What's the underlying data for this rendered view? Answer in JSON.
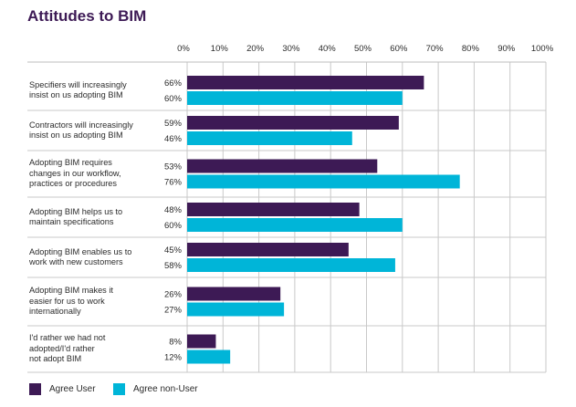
{
  "chart_data": {
    "type": "bar",
    "orientation": "horizontal",
    "title": "Attitudes to BIM",
    "xlim": [
      0,
      100
    ],
    "x_ticks": [
      "0%",
      "10%",
      "20%",
      "30%",
      "40%",
      "50%",
      "60%",
      "70%",
      "80%",
      "90%",
      "100%"
    ],
    "grid": true,
    "legend_position": "bottom-left",
    "categories": [
      [
        "Specifiers will increasingly",
        "insist on us adopting BIM"
      ],
      [
        "Contractors will increasingly",
        "insist on us adopting BIM"
      ],
      [
        "Adopting BIM requires",
        "changes in our workflow,",
        "practices or procedures"
      ],
      [
        "Adopting BIM helps us to",
        "maintain specifications"
      ],
      [
        "Adopting BIM enables us to",
        "work with new customers"
      ],
      [
        "Adopting BIM makes it",
        "easier for us to work",
        "internationally"
      ],
      [
        "I'd rather we had not",
        "adopted/I'd rather",
        "not adopt BIM"
      ]
    ],
    "series": [
      {
        "name": "Agree User",
        "color": "#3d1a55",
        "values": [
          66,
          59,
          53,
          48,
          45,
          26,
          8
        ],
        "labels": [
          "66%",
          "59%",
          "53%",
          "48%",
          "45%",
          "26%",
          "8%"
        ]
      },
      {
        "name": "Agree non-User",
        "color": "#00b5d8",
        "values": [
          60,
          46,
          76,
          60,
          58,
          27,
          12
        ],
        "labels": [
          "60%",
          "46%",
          "76%",
          "60%",
          "58%",
          "27%",
          "12%"
        ]
      }
    ]
  }
}
